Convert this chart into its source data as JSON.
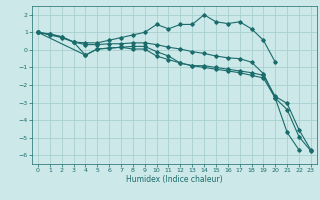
{
  "bg_color": "#cde8e8",
  "line_color": "#1a6b6b",
  "grid_color": "#a8d0d0",
  "xlabel": "Humidex (Indice chaleur)",
  "xlim": [
    -0.5,
    23.5
  ],
  "ylim": [
    -6.5,
    2.5
  ],
  "yticks": [
    -6,
    -5,
    -4,
    -3,
    -2,
    -1,
    0,
    1,
    2
  ],
  "xticks": [
    0,
    1,
    2,
    3,
    4,
    5,
    6,
    7,
    8,
    9,
    10,
    11,
    12,
    13,
    14,
    15,
    16,
    17,
    18,
    19,
    20,
    21,
    22,
    23
  ],
  "lines": [
    {
      "x": [
        0,
        1,
        2,
        3,
        4,
        5,
        6,
        7,
        8,
        9,
        10,
        11,
        12,
        13,
        14,
        15,
        16,
        17,
        18,
        19,
        20
      ],
      "y": [
        1.0,
        0.85,
        0.7,
        0.45,
        0.4,
        0.4,
        0.55,
        0.7,
        0.85,
        1.0,
        1.45,
        1.2,
        1.45,
        1.45,
        2.0,
        1.6,
        1.5,
        1.6,
        1.2,
        0.55,
        -0.7
      ]
    },
    {
      "x": [
        0,
        1,
        2,
        3,
        4,
        5,
        6,
        7,
        8,
        9,
        10,
        11,
        12,
        13,
        14,
        15,
        16,
        17,
        18,
        19,
        20,
        21,
        22
      ],
      "y": [
        1.0,
        0.9,
        0.75,
        0.45,
        0.3,
        0.3,
        0.35,
        0.35,
        0.4,
        0.4,
        0.3,
        0.15,
        0.05,
        -0.1,
        -0.2,
        -0.35,
        -0.45,
        -0.5,
        -0.7,
        -1.35,
        -2.75,
        -4.7,
        -5.7
      ]
    },
    {
      "x": [
        0,
        1,
        2,
        3,
        4,
        5,
        6,
        7,
        8,
        9,
        10,
        11,
        12,
        13,
        14,
        15,
        16,
        17,
        18,
        19,
        20,
        21,
        22,
        23
      ],
      "y": [
        1.0,
        0.9,
        0.75,
        0.45,
        -0.3,
        0.05,
        0.1,
        0.15,
        0.05,
        0.05,
        -0.35,
        -0.55,
        -0.75,
        -0.9,
        -1.0,
        -1.1,
        -1.2,
        -1.3,
        -1.45,
        -1.6,
        -2.75,
        -3.4,
        -4.95,
        -5.75
      ]
    },
    {
      "x": [
        0,
        4,
        5,
        6,
        7,
        8,
        9,
        10,
        11,
        12,
        13,
        14,
        15,
        16,
        17,
        18,
        19,
        20,
        21,
        22,
        23
      ],
      "y": [
        1.0,
        -0.3,
        0.05,
        0.1,
        0.15,
        0.2,
        0.2,
        -0.1,
        -0.35,
        -0.75,
        -0.9,
        -0.9,
        -1.0,
        -1.1,
        -1.2,
        -1.3,
        -1.45,
        -2.65,
        -3.05,
        -4.55,
        -5.7
      ]
    }
  ]
}
